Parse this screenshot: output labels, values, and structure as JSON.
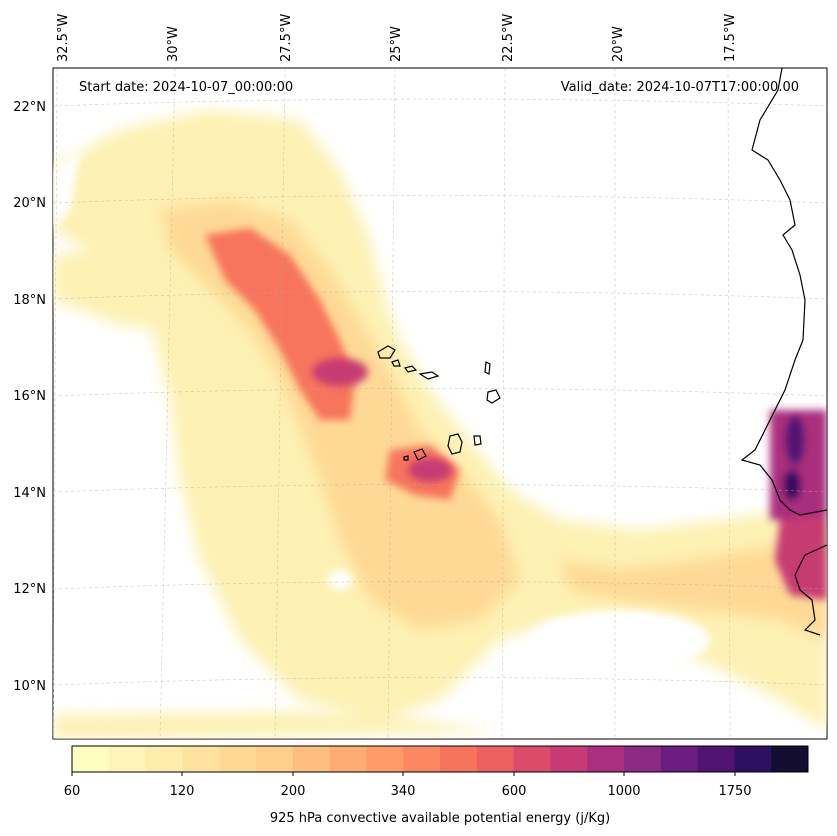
{
  "header": {
    "start_date": "Start date: 2024-10-07_00:00:00",
    "valid_date": "Valid_date: 2024-10-07T17:00:00.00"
  },
  "axes": {
    "lon_labels": [
      "32.5°W",
      "30°W",
      "27.5°W",
      "25°W",
      "22.5°W",
      "20°W",
      "17.5°W"
    ],
    "lat_labels": [
      "22°N",
      "20°N",
      "18°N",
      "16°N",
      "14°N",
      "12°N",
      "10°N"
    ]
  },
  "colorbar": {
    "title": "925 hPa convective available potential energy (j/Kg)",
    "tick_labels": [
      "60",
      "120",
      "200",
      "340",
      "600",
      "1000",
      "1750"
    ],
    "colors": [
      "#fcfdbf",
      "#fdf5b5",
      "#feecaa",
      "#fee3a0",
      "#fed995",
      "#fecf8b",
      "#febe7e",
      "#feac72",
      "#fd9c68",
      "#fb8861",
      "#f7745c",
      "#ec6060",
      "#dc4b69",
      "#c73a73",
      "#ab2f7e",
      "#8c2981",
      "#6b1c80",
      "#501372",
      "#2d1160",
      "#120d31"
    ],
    "colormap": "magma-like (light yellow to dark purple)"
  }
}
